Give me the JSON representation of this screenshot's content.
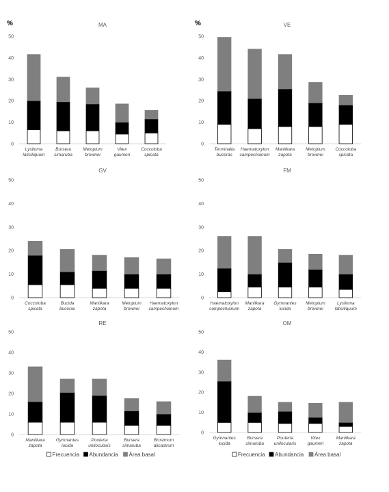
{
  "colors": {
    "frecuencia": "#ffffff",
    "abundancia": "#000000",
    "area_basal": "#7f7f7f",
    "frecuencia_stroke": "#000000"
  },
  "legend": {
    "frecuencia": "Frecuencia",
    "abundancia": "Abundancia",
    "area_basal": "Área basal"
  },
  "chart_data": [
    {
      "type": "bar",
      "stacked": true,
      "title": "MA",
      "ylabel": "%",
      "ylim": [
        0,
        50
      ],
      "yticks": [
        0,
        10,
        20,
        30,
        40,
        50
      ],
      "categories": [
        [
          "Lysiloma",
          "latisiliquum"
        ],
        [
          "Bursera",
          "simaruba"
        ],
        [
          "Metopium",
          "brownei"
        ],
        [
          "Vitex",
          "gaumeri"
        ],
        [
          "Coccoloba",
          "spicata"
        ]
      ],
      "series": [
        {
          "name": "Frecuencia",
          "values": [
            6.5,
            6,
            6,
            4.5,
            5
          ]
        },
        {
          "name": "Abundancia",
          "values": [
            13.5,
            13.5,
            12.5,
            5.5,
            6.5
          ]
        },
        {
          "name": "Área basal",
          "values": [
            21.5,
            11.5,
            7.5,
            8.5,
            4
          ]
        }
      ]
    },
    {
      "type": "bar",
      "stacked": true,
      "title": "VE",
      "ylabel": "%",
      "ylim": [
        0,
        50
      ],
      "yticks": [
        0,
        10,
        20,
        30,
        40,
        50
      ],
      "categories": [
        [
          "Terminalia",
          "buceras"
        ],
        [
          "Haematoxylon",
          "campechianum"
        ],
        [
          "Manilkara",
          "zapota"
        ],
        [
          "Metopium",
          "brownei"
        ],
        [
          "Coccoloba",
          "spicata"
        ]
      ],
      "series": [
        {
          "name": "Frecuencia",
          "values": [
            9,
            7,
            8,
            8,
            9
          ]
        },
        {
          "name": "Abundancia",
          "values": [
            15.5,
            14,
            17.5,
            11,
            9
          ]
        },
        {
          "name": "Área basal",
          "values": [
            25,
            23,
            16,
            9.5,
            4.5
          ]
        }
      ]
    },
    {
      "type": "bar",
      "stacked": true,
      "title": "GV",
      "ylabel": "",
      "ylim": [
        0,
        50
      ],
      "yticks": [
        0,
        10,
        20,
        30,
        40,
        50
      ],
      "categories": [
        [
          "Coccoloba",
          "spicata"
        ],
        [
          "Bucida",
          "buceras"
        ],
        [
          "Manilkara",
          "zapota"
        ],
        [
          "Metopium",
          "brownei"
        ],
        [
          "Haematoxylon",
          "campechianum"
        ]
      ],
      "series": [
        {
          "name": "Frecuencia",
          "values": [
            5.5,
            5.5,
            4,
            4,
            4
          ]
        },
        {
          "name": "Abundancia",
          "values": [
            12.5,
            5.5,
            7.5,
            6,
            6
          ]
        },
        {
          "name": "Área basal",
          "values": [
            6,
            9.5,
            6.5,
            7,
            6.5
          ]
        }
      ]
    },
    {
      "type": "bar",
      "stacked": true,
      "title": "FM",
      "ylabel": "",
      "ylim": [
        0,
        50
      ],
      "yticks": [
        0,
        10,
        20,
        30,
        40,
        50
      ],
      "categories": [
        [
          "Haematoxylon",
          "campechianum"
        ],
        [
          "Manilkara",
          "zapota"
        ],
        [
          "Gymnantes",
          "lucida"
        ],
        [
          "Metopium",
          "brownei"
        ],
        [
          "Lysiloma",
          "latisiliquum"
        ]
      ],
      "series": [
        {
          "name": "Frecuencia",
          "values": [
            2.5,
            4.5,
            4.5,
            4.5,
            3.5
          ]
        },
        {
          "name": "Abundancia",
          "values": [
            10,
            5.5,
            10.5,
            7.5,
            6.5
          ]
        },
        {
          "name": "Área basal",
          "values": [
            13.5,
            16,
            5.5,
            6.5,
            8
          ]
        }
      ]
    },
    {
      "type": "bar",
      "stacked": true,
      "title": "RE",
      "ylabel": "",
      "ylim": [
        0,
        50
      ],
      "yticks": [
        0,
        10,
        20,
        30,
        40,
        50
      ],
      "categories": [
        [
          "Manilkara",
          "zapota"
        ],
        [
          "Gymnantes",
          "lucida"
        ],
        [
          "Pouteria",
          "unilocularis"
        ],
        [
          "Bursera",
          "simaruba"
        ],
        [
          "Brosimum",
          "alicastrum"
        ]
      ],
      "series": [
        {
          "name": "Frecuencia",
          "values": [
            6,
            6,
            6,
            4.5,
            4.5
          ]
        },
        {
          "name": "Abundancia",
          "values": [
            10,
            14.5,
            13,
            7,
            5.5
          ]
        },
        {
          "name": "Área basal",
          "values": [
            17,
            6.5,
            8,
            6,
            6
          ]
        }
      ]
    },
    {
      "type": "bar",
      "stacked": true,
      "title": "OM",
      "ylabel": "",
      "ylim": [
        0,
        50
      ],
      "yticks": [
        0,
        10,
        20,
        30,
        40,
        50
      ],
      "categories": [
        [
          "Gymnantes",
          "lucida"
        ],
        [
          "Bursera",
          "simaruba"
        ],
        [
          "Pouteria",
          "unilocularis"
        ],
        [
          "Vitex",
          "gaumeri"
        ],
        [
          "Manilkara",
          "zapota"
        ]
      ],
      "series": [
        {
          "name": "Frecuencia",
          "values": [
            5,
            5,
            4.5,
            4.5,
            3
          ]
        },
        {
          "name": "Abundancia",
          "values": [
            20.5,
            5,
            6,
            3,
            2
          ]
        },
        {
          "name": "Área basal",
          "values": [
            10.5,
            8,
            4.5,
            7,
            10
          ]
        }
      ]
    }
  ]
}
